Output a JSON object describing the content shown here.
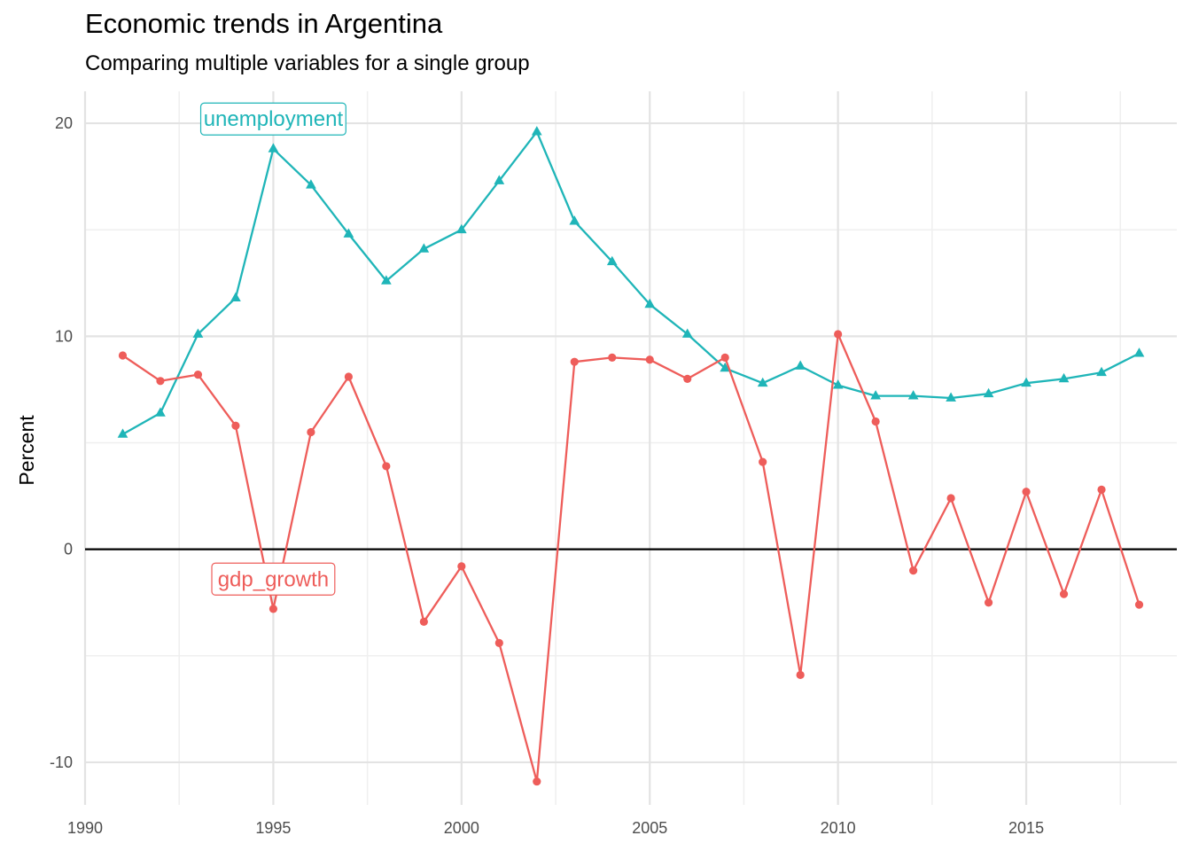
{
  "chart_data": {
    "type": "line",
    "title": "Economic trends in Argentina",
    "subtitle": "Comparing multiple variables for a single group",
    "xlabel": "",
    "ylabel": "Percent",
    "xlim": [
      1990,
      2019
    ],
    "ylim": [
      -12,
      21.5
    ],
    "x_ticks": [
      1990,
      1995,
      2000,
      2005,
      2010,
      2015
    ],
    "y_ticks": [
      -10,
      0,
      10,
      20
    ],
    "grid": true,
    "zero_line": true,
    "legend": "direct labels on lines",
    "x": [
      1991,
      1992,
      1993,
      1994,
      1995,
      1996,
      1997,
      1998,
      1999,
      2000,
      2001,
      2002,
      2003,
      2004,
      2005,
      2006,
      2007,
      2008,
      2009,
      2010,
      2011,
      2012,
      2013,
      2014,
      2015,
      2016,
      2017,
      2018
    ],
    "series": [
      {
        "name": "unemployment",
        "color": "#1fb5b8",
        "marker": "triangle",
        "label_at": [
          1995,
          20.2
        ],
        "values": [
          5.4,
          6.4,
          10.1,
          11.8,
          18.8,
          17.1,
          14.8,
          12.6,
          14.1,
          15.0,
          17.3,
          19.6,
          15.4,
          13.5,
          11.5,
          10.1,
          8.5,
          7.8,
          8.6,
          7.7,
          7.2,
          7.2,
          7.1,
          7.3,
          7.8,
          8.0,
          8.3,
          9.2
        ]
      },
      {
        "name": "gdp_growth",
        "color": "#ee5d5a",
        "marker": "circle",
        "label_at": [
          1995,
          -1.4
        ],
        "values": [
          9.1,
          7.9,
          8.2,
          5.8,
          -2.8,
          5.5,
          8.1,
          3.9,
          -3.4,
          -0.8,
          -4.4,
          -10.9,
          8.8,
          9.0,
          8.9,
          8.0,
          9.0,
          4.1,
          -5.9,
          10.1,
          6.0,
          -1.0,
          2.4,
          -2.5,
          2.7,
          -2.1,
          2.8,
          -2.6
        ]
      }
    ]
  }
}
